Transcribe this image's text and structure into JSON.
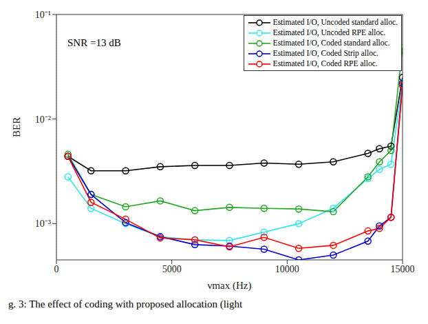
{
  "chart_data": {
    "type": "line",
    "annotation": "SNR =13 dB",
    "caption": "g. 3: The effect of coding with proposed allocation (light",
    "x_label": "νmax (Hz)",
    "y_label": "BER",
    "log": "y",
    "grid": true,
    "legend": "upper right",
    "marker": "circle",
    "x": [
      500,
      1500,
      3000,
      4500,
      6000,
      7500,
      9000,
      10500,
      12000,
      13500,
      14000,
      14500,
      15000
    ],
    "xlim": [
      0,
      15000
    ],
    "xticks": [
      0,
      5000,
      10000,
      15000
    ],
    "ylim": [
      0.00045,
      0.1
    ],
    "yticks": [
      {
        "value": 0.001,
        "label": "10⁻³"
      },
      {
        "value": 0.01,
        "label": "10⁻²"
      },
      {
        "value": 0.1,
        "label": "10⁻¹"
      }
    ],
    "series": [
      {
        "name": "Estimated I/O, Uncoded standard alloc.",
        "color": "#000000",
        "values": [
          0.0044,
          0.0032,
          0.0032,
          0.0035,
          0.0036,
          0.0036,
          0.0038,
          0.0037,
          0.0039,
          0.0047,
          0.0052,
          0.0055,
          0.025
        ]
      },
      {
        "name": "Estimated I/O, Uncoded RPE alloc.",
        "color": "#2ee6f0",
        "values": [
          0.0028,
          0.0014,
          0.001,
          0.00075,
          0.0007,
          0.00069,
          0.00083,
          0.001,
          0.0014,
          0.0027,
          0.0033,
          0.0037,
          0.022
        ]
      },
      {
        "name": "Estimated I/O, Coded standard alloc.",
        "color": "#22a822",
        "values": [
          0.0046,
          0.0019,
          0.00145,
          0.00165,
          0.00133,
          0.00143,
          0.0014,
          0.00138,
          0.0013,
          0.0028,
          0.0039,
          0.005,
          0.048
        ]
      },
      {
        "name": "Estimated I/O, Coded Strip alloc.",
        "color": "#0000d0",
        "values": [
          0.0044,
          0.0019,
          0.00102,
          0.00075,
          0.00063,
          0.00061,
          0.00057,
          0.00045,
          0.0005,
          0.00068,
          0.00095,
          0.00115,
          0.022
        ]
      },
      {
        "name": "Estimated I/O, Coded RPE alloc.",
        "color": "#ff0000",
        "values": [
          0.0044,
          0.0016,
          0.0011,
          0.00073,
          0.0007,
          0.0006,
          0.00074,
          0.00058,
          0.00062,
          0.00085,
          0.0009,
          0.00115,
          0.021
        ]
      }
    ]
  }
}
